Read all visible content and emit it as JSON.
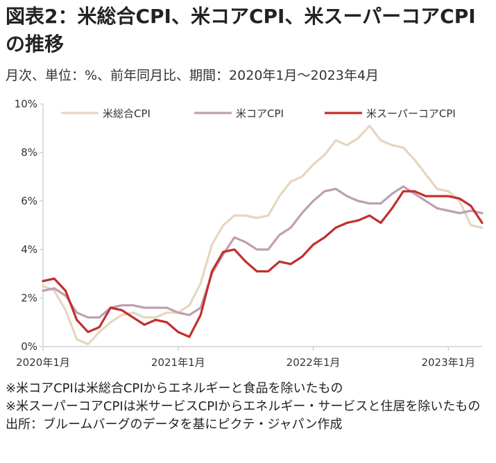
{
  "title": "図表2：米総合CPI、米コアCPI、米スーパーコアCPIの推移",
  "subtitle": "月次、単位：%、前年同月比、期間：2020年1月～2023年4月",
  "notes": [
    "※米コアCPIは米総合CPIからエネルギーと食品を除いたもの",
    "※米スーパーコアCPIは米サービスCPIからエネルギー・サービスと住居を除いたもの",
    "出所：ブルームバーグのデータを基にピクテ・ジャパン作成"
  ],
  "colors": {
    "headline": "#e6d6bf",
    "core": "#bf9fb2",
    "supercore": "#c0302e",
    "axis": "#c8c8c8"
  },
  "chart_data": {
    "type": "line",
    "ylim": [
      0,
      10
    ],
    "yticks": [
      "0%",
      "2%",
      "4%",
      "6%",
      "8%",
      "10%"
    ],
    "xticks": [
      "2020年1月",
      "2021年1月",
      "2022年1月",
      "2023年1月"
    ],
    "x": [
      "2020-01",
      "2020-02",
      "2020-03",
      "2020-04",
      "2020-05",
      "2020-06",
      "2020-07",
      "2020-08",
      "2020-09",
      "2020-10",
      "2020-11",
      "2020-12",
      "2021-01",
      "2021-02",
      "2021-03",
      "2021-04",
      "2021-05",
      "2021-06",
      "2021-07",
      "2021-08",
      "2021-09",
      "2021-10",
      "2021-11",
      "2021-12",
      "2022-01",
      "2022-02",
      "2022-03",
      "2022-04",
      "2022-05",
      "2022-06",
      "2022-07",
      "2022-08",
      "2022-09",
      "2022-10",
      "2022-11",
      "2022-12",
      "2023-01",
      "2023-02",
      "2023-03",
      "2023-04"
    ],
    "legend_position": "top",
    "grid": false,
    "series": [
      {
        "name": "米総合CPI",
        "key": "headline",
        "values": [
          2.5,
          2.3,
          1.5,
          0.3,
          0.1,
          0.6,
          1.0,
          1.3,
          1.4,
          1.2,
          1.2,
          1.4,
          1.4,
          1.7,
          2.6,
          4.2,
          5.0,
          5.4,
          5.4,
          5.3,
          5.4,
          6.2,
          6.8,
          7.0,
          7.5,
          7.9,
          8.5,
          8.3,
          8.6,
          9.1,
          8.5,
          8.3,
          8.2,
          7.7,
          7.1,
          6.5,
          6.4,
          6.0,
          5.0,
          4.9
        ]
      },
      {
        "name": "米コアCPI",
        "key": "core",
        "values": [
          2.3,
          2.4,
          2.1,
          1.4,
          1.2,
          1.2,
          1.6,
          1.7,
          1.7,
          1.6,
          1.6,
          1.6,
          1.4,
          1.3,
          1.6,
          3.0,
          3.8,
          4.5,
          4.3,
          4.0,
          4.0,
          4.6,
          4.9,
          5.5,
          6.0,
          6.4,
          6.5,
          6.2,
          6.0,
          5.9,
          5.9,
          6.3,
          6.6,
          6.3,
          6.0,
          5.7,
          5.6,
          5.5,
          5.6,
          5.5
        ]
      },
      {
        "name": "米スーパーコアCPI",
        "key": "supercore",
        "values": [
          2.7,
          2.8,
          2.3,
          1.1,
          0.6,
          0.8,
          1.6,
          1.5,
          1.2,
          0.9,
          1.1,
          1.0,
          0.6,
          0.4,
          1.3,
          3.1,
          3.9,
          4.0,
          3.5,
          3.1,
          3.1,
          3.5,
          3.4,
          3.7,
          4.2,
          4.5,
          4.9,
          5.1,
          5.2,
          5.4,
          5.1,
          5.7,
          6.4,
          6.4,
          6.2,
          6.2,
          6.2,
          6.1,
          5.8,
          5.1
        ]
      }
    ]
  }
}
